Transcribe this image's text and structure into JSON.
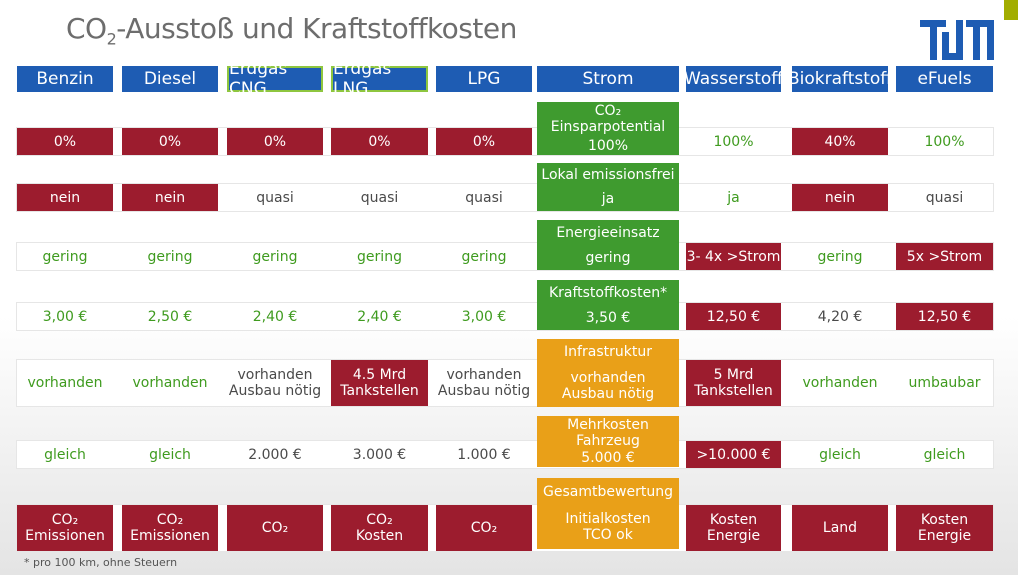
{
  "title": {
    "prefix": "CO",
    "sub": "2",
    "suffix": "-Ausstoß und Kraftstoffkosten"
  },
  "brand_color": "#1e5cb3",
  "headers": [
    "Benzin",
    "Diesel",
    "Erdgas CNG",
    "Erdgas LNG",
    "LPG",
    "Strom",
    "Wasserstoff",
    "Biokraftstoff",
    "eFuels"
  ],
  "rows": [
    {
      "center_label": "CO₂ Einsparpotential",
      "center_value": "100%",
      "cells": [
        {
          "text": "0%",
          "style": "red"
        },
        {
          "text": "0%",
          "style": "red"
        },
        {
          "text": "0%",
          "style": "red"
        },
        {
          "text": "0%",
          "style": "red"
        },
        {
          "text": "0%",
          "style": "red"
        },
        {
          "text": "100%",
          "style": "green"
        },
        {
          "text": "40%",
          "style": "red"
        },
        {
          "text": "100%",
          "style": "green"
        }
      ]
    },
    {
      "center_label": "Lokal emissionsfrei",
      "center_value": "ja",
      "cells": [
        {
          "text": "nein",
          "style": "red"
        },
        {
          "text": "nein",
          "style": "red"
        },
        {
          "text": "quasi",
          "style": "gray"
        },
        {
          "text": "quasi",
          "style": "gray"
        },
        {
          "text": "quasi",
          "style": "gray"
        },
        {
          "text": "ja",
          "style": "green"
        },
        {
          "text": "nein",
          "style": "red"
        },
        {
          "text": "quasi",
          "style": "gray"
        }
      ]
    },
    {
      "center_label": "Energieeinsatz",
      "center_value": "gering",
      "cells": [
        {
          "text": "gering",
          "style": "green"
        },
        {
          "text": "gering",
          "style": "green"
        },
        {
          "text": "gering",
          "style": "green"
        },
        {
          "text": "gering",
          "style": "green"
        },
        {
          "text": "gering",
          "style": "green"
        },
        {
          "text": "3- 4x >Strom",
          "style": "red"
        },
        {
          "text": "gering",
          "style": "green"
        },
        {
          "text": "5x >Strom",
          "style": "red"
        }
      ]
    },
    {
      "center_label": "Kraftstoffkosten*",
      "center_value": "3,50 €",
      "cells": [
        {
          "text": "3,00 €",
          "style": "green"
        },
        {
          "text": "2,50 €",
          "style": "green"
        },
        {
          "text": "2,40 €",
          "style": "green"
        },
        {
          "text": "2,40 €",
          "style": "green"
        },
        {
          "text": "3,00 €",
          "style": "green"
        },
        {
          "text": "12,50 €",
          "style": "red"
        },
        {
          "text": "4,20 €",
          "style": "gray"
        },
        {
          "text": "12,50 €",
          "style": "red"
        }
      ]
    },
    {
      "center_label": "Infrastruktur",
      "center_value": "vorhanden\nAusbau nötig",
      "cells": [
        {
          "text": "vorhanden",
          "style": "green"
        },
        {
          "text": "vorhanden",
          "style": "green"
        },
        {
          "text": "vorhanden\nAusbau nötig",
          "style": "gray"
        },
        {
          "text": "4.5 Mrd\nTankstellen",
          "style": "red"
        },
        {
          "text": "vorhanden\nAusbau nötig",
          "style": "gray"
        },
        {
          "text": "5 Mrd\nTankstellen",
          "style": "red"
        },
        {
          "text": "vorhanden",
          "style": "green"
        },
        {
          "text": "umbaubar",
          "style": "green"
        }
      ]
    },
    {
      "center_label": "Mehrkosten Fahrzeug",
      "center_value": "5.000 €",
      "cells": [
        {
          "text": "gleich",
          "style": "green"
        },
        {
          "text": "gleich",
          "style": "green"
        },
        {
          "text": "2.000 €",
          "style": "gray"
        },
        {
          "text": "3.000 €",
          "style": "gray"
        },
        {
          "text": "1.000 €",
          "style": "gray"
        },
        {
          "text": ">10.000 €",
          "style": "red"
        },
        {
          "text": "gleich",
          "style": "green"
        },
        {
          "text": "gleich",
          "style": "green"
        }
      ]
    },
    {
      "center_label": "Gesamtbewertung",
      "center_value": "Initialkosten\nTCO ok",
      "cells": [
        {
          "text": "CO₂\nEmissionen",
          "style": "red"
        },
        {
          "text": "CO₂\nEmissionen",
          "style": "red"
        },
        {
          "text": "CO₂",
          "style": "red"
        },
        {
          "text": "CO₂\nKosten",
          "style": "red"
        },
        {
          "text": "CO₂",
          "style": "red"
        },
        {
          "text": "Kosten\nEnergie",
          "style": "red"
        },
        {
          "text": "Land",
          "style": "red"
        },
        {
          "text": "Kosten\nEnergie",
          "style": "red"
        }
      ]
    }
  ],
  "footnote": "* pro 100 km, ohne Steuern"
}
